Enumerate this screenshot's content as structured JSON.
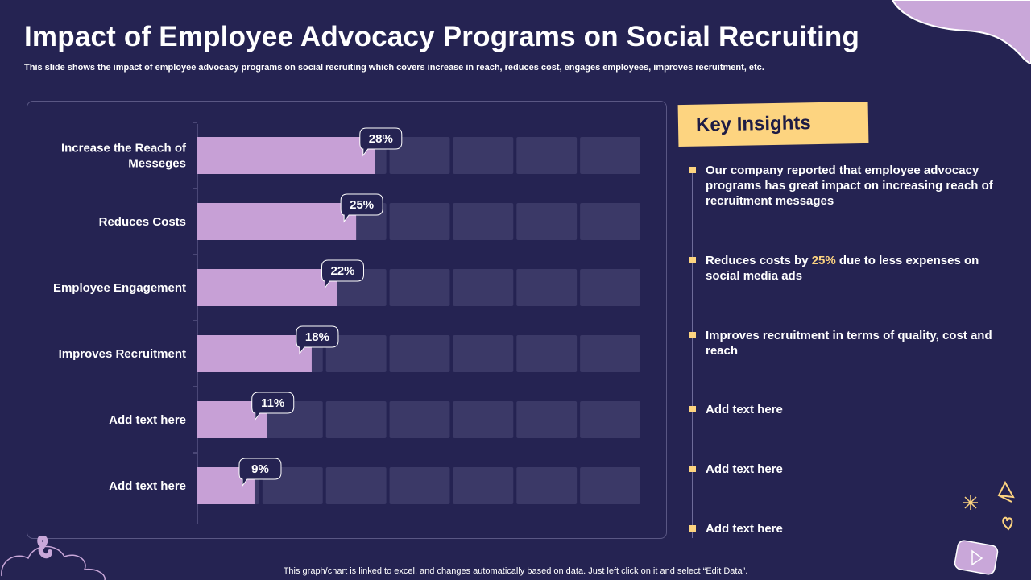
{
  "title": "Impact of Employee Advocacy Programs on Social Recruiting",
  "subtitle": "This slide shows the impact of employee advocacy programs on social recruiting which covers increase in reach, reduces cost, engages employees, improves recruitment, etc.",
  "chart_data": {
    "type": "bar",
    "orientation": "horizontal",
    "categories": [
      [
        "Increase the Reach of",
        "Messeges"
      ],
      [
        "Reduces Costs"
      ],
      [
        "Employee Engagement"
      ],
      [
        "Improves Recruitment"
      ],
      [
        "Add text here"
      ],
      [
        "Add text here"
      ]
    ],
    "values": [
      28,
      25,
      22,
      18,
      11,
      9
    ],
    "value_labels": [
      "28%",
      "25%",
      "22%",
      "18%",
      "11%",
      "9%"
    ],
    "xlim": [
      0,
      70
    ],
    "grid_segments": 7,
    "bar_color": "#c7a0d6",
    "track_color": "#3b3967"
  },
  "insights": {
    "header": "Key Insights",
    "items": [
      {
        "text": "Our company reported that employee advocacy programs has great impact on increasing reach of recruitment messages"
      },
      {
        "pre": "Reduces costs by ",
        "highlight": "25%",
        "post": " due to less expenses on social media ads"
      },
      {
        "text": "Improves recruitment in terms of quality, cost and reach"
      },
      {
        "text": "Add text here"
      },
      {
        "text": "Add text here"
      },
      {
        "text": "Add text here"
      }
    ]
  },
  "footer": "This graph/chart is linked to excel,  and changes automatically based on data. Just left click on it and select “Edit Data”.",
  "colors": {
    "background": "#252352",
    "accent_yellow": "#fdd480",
    "accent_lilac": "#c7a0d6"
  }
}
